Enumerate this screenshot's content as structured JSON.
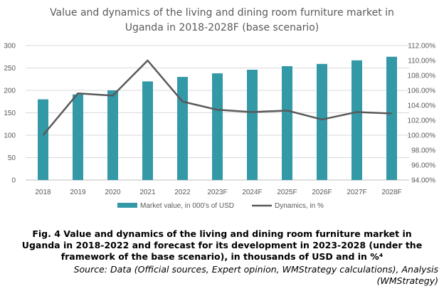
{
  "chart_data": {
    "type": "bar",
    "title_line1": "Value and dynamics of the living and dining room furniture market in",
    "title_line2": "Uganda in 2018-2028F (base scenario)",
    "categories": [
      "2018",
      "2019",
      "2020",
      "2021",
      "2022",
      "2023F",
      "2024F",
      "2025F",
      "2026F",
      "2027F",
      "2028F"
    ],
    "series": [
      {
        "name": "Market value, in 000's of USD",
        "type": "bar",
        "axis": "left",
        "color": "#3399A6",
        "values": [
          180,
          191,
          200,
          220,
          230,
          238,
          246,
          254,
          259,
          267,
          275
        ]
      },
      {
        "name": "Dynamics, in %",
        "type": "line",
        "axis": "right",
        "color": "#595959",
        "values": [
          100.0,
          105.6,
          105.3,
          110.0,
          104.5,
          103.4,
          103.1,
          103.3,
          102.1,
          103.1,
          102.9
        ]
      }
    ],
    "y_left": {
      "min": 0,
      "max": 300,
      "ticks": [
        "0",
        "50",
        "100",
        "150",
        "200",
        "250",
        "300"
      ]
    },
    "y_right": {
      "min": 94,
      "max": 112,
      "ticks": [
        "94.00%",
        "96.00%",
        "98.00%",
        "100.00%",
        "102.00%",
        "104.00%",
        "106.00%",
        "108.00%",
        "110.00%",
        "112.00%"
      ]
    },
    "grid": true,
    "legend_position": "bottom"
  },
  "caption": {
    "line1": "Fig. 4 Value and dynamics of the living and dining room furniture market in",
    "line2": "Uganda in 2018-2022 and forecast for its development in 2023-2028 (under the",
    "line3": "framework of the base scenario), in thousands of USD and in %⁴"
  },
  "source": {
    "line1": "Source: Data (Official sources, Expert opinion, WMStrategy calculations), Analysis",
    "line2": "(WMStrategy)"
  }
}
